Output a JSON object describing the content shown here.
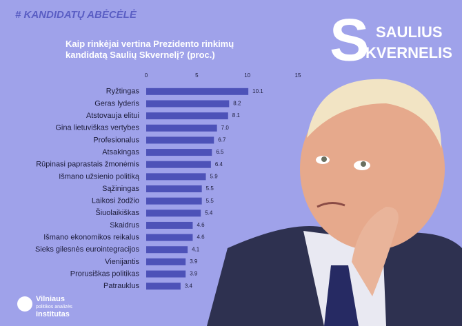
{
  "header": {
    "hashtag": "# KANDIDATŲ ABĖCĖLĖ",
    "initial": "S",
    "first_name": "SAULIUS",
    "last_name_rest": "KVERNELIS"
  },
  "logo": {
    "line1": "Vilniaus",
    "line2": "politikos analizės",
    "line3": "institutas"
  },
  "chart_data": {
    "type": "hbar",
    "title": "Kaip rinkėjai vertina Prezidento rinkimų kandidatą Saulių Skvernelį? (proc.)",
    "categories": [
      "Ryžtingas",
      "Geras lyderis",
      "Atstovauja elitui",
      "Gina lietuviškas vertybes",
      "Profesionalus",
      "Atsakingas",
      "Rūpinasi paprastais žmonėmis",
      "Išmano užsienio politiką",
      "Sąžiningas",
      "Laikosi žodžio",
      "Šiuolaikiškas",
      "Skaidrus",
      "Išmano ekonomikos reikalus",
      "Sieks gilesnės eurointegracijos",
      "Vienijantis",
      "Prorusiškas politikas",
      "Patrauklus"
    ],
    "values": [
      10.1,
      8.2,
      8.1,
      7.0,
      6.7,
      6.5,
      6.4,
      5.9,
      5.5,
      5.5,
      5.4,
      4.6,
      4.6,
      4.1,
      3.9,
      3.9,
      3.4
    ],
    "value_labels": [
      "10.1",
      "8.2",
      "8.1",
      "7.0",
      "6.7",
      "6.5",
      "6.4",
      "5.9",
      "5.5",
      "5.5",
      "5.4",
      "4.6",
      "4.6",
      "4.1",
      "3.9",
      "3.9",
      "3.4"
    ],
    "color": "#4d52b8",
    "xlim": [
      0,
      15
    ],
    "xticks": [
      0,
      5,
      10,
      15
    ],
    "grid": false
  }
}
